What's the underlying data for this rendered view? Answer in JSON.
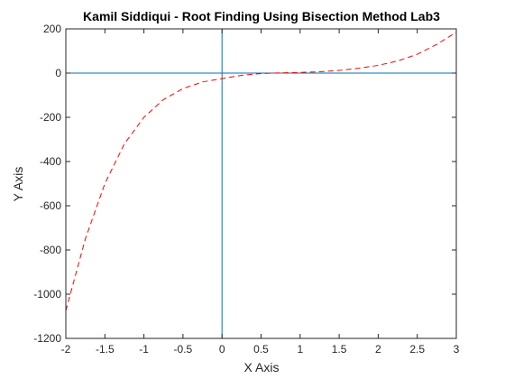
{
  "chart_data": {
    "type": "line",
    "title": "Kamil Siddiqui - Root Finding Using Bisection Method Lab3",
    "xlabel": "X Axis",
    "ylabel": "Y Axis",
    "xlim": [
      -2,
      3
    ],
    "ylim": [
      -1200,
      200
    ],
    "xticks": [
      -2,
      -1.5,
      -1,
      -0.5,
      0,
      0.5,
      1,
      1.5,
      2,
      2.5,
      3
    ],
    "xtick_labels": [
      "-2",
      "-1.5",
      "-1",
      "-0.5",
      "0",
      "0.5",
      "1",
      "1.5",
      "2",
      "2.5",
      "3"
    ],
    "yticks": [
      -1200,
      -1000,
      -800,
      -600,
      -400,
      -200,
      0,
      200
    ],
    "ytick_labels": [
      "-1200",
      "-1000",
      "-800",
      "-600",
      "-400",
      "-200",
      "0",
      "200"
    ],
    "grid": false,
    "series": [
      {
        "color": "#ff0000",
        "style": "dashed",
        "x": [
          -2,
          -1.75,
          -1.5,
          -1.25,
          -1,
          -0.75,
          -0.5,
          -0.25,
          0,
          0.25,
          0.5,
          0.75,
          1,
          1.25,
          1.5,
          1.75,
          2,
          2.25,
          2.5,
          2.75,
          3
        ],
        "y": [
          -1075,
          -750,
          -500,
          -320,
          -200,
          -120,
          -70,
          -40,
          -25,
          -10,
          -2,
          1,
          3,
          6,
          12,
          22,
          35,
          55,
          85,
          130,
          185
        ]
      }
    ],
    "reference_lines": {
      "color": "#0072bd",
      "horizontal_y": 0,
      "vertical_x": 0
    }
  }
}
